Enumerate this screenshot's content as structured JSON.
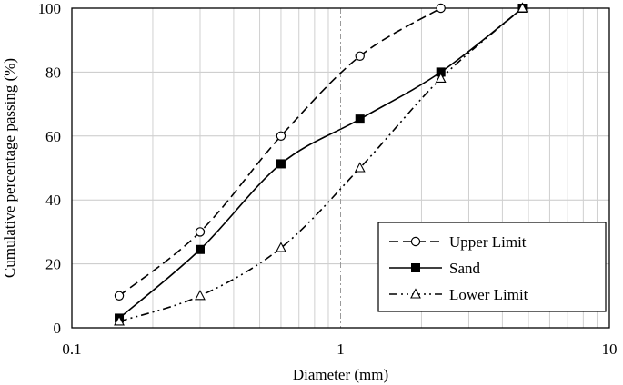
{
  "chart_data": {
    "type": "line",
    "xlabel": "Diameter (mm)",
    "ylabel": "Cumulative percentage passing (%)",
    "xscale": "log",
    "xlim": [
      0.1,
      10
    ],
    "ylim": [
      0,
      100
    ],
    "x_ticks": [
      "0.1",
      "1",
      "10"
    ],
    "y_ticks": [
      "0",
      "20",
      "40",
      "60",
      "80",
      "100"
    ],
    "grid": true,
    "legend_position": "bottom-right",
    "series": [
      {
        "name": "Upper Limit",
        "marker": "circle-open",
        "line": "dashed",
        "color": "#000000",
        "x": [
          0.15,
          0.3,
          0.6,
          1.18,
          2.36
        ],
        "y": [
          10,
          30,
          60,
          85,
          100
        ]
      },
      {
        "name": "Sand",
        "marker": "square-filled",
        "line": "solid",
        "color": "#000000",
        "x": [
          0.15,
          0.3,
          0.6,
          1.18,
          2.36,
          4.75
        ],
        "y": [
          3,
          24.5,
          51.3,
          65.3,
          80,
          100
        ]
      },
      {
        "name": "Lower Limit",
        "marker": "triangle-open",
        "line": "dash-dot-dot",
        "color": "#000000",
        "x": [
          0.15,
          0.3,
          0.6,
          1.18,
          2.36,
          4.75
        ],
        "y": [
          2,
          10,
          25,
          50,
          78,
          100
        ]
      }
    ]
  }
}
